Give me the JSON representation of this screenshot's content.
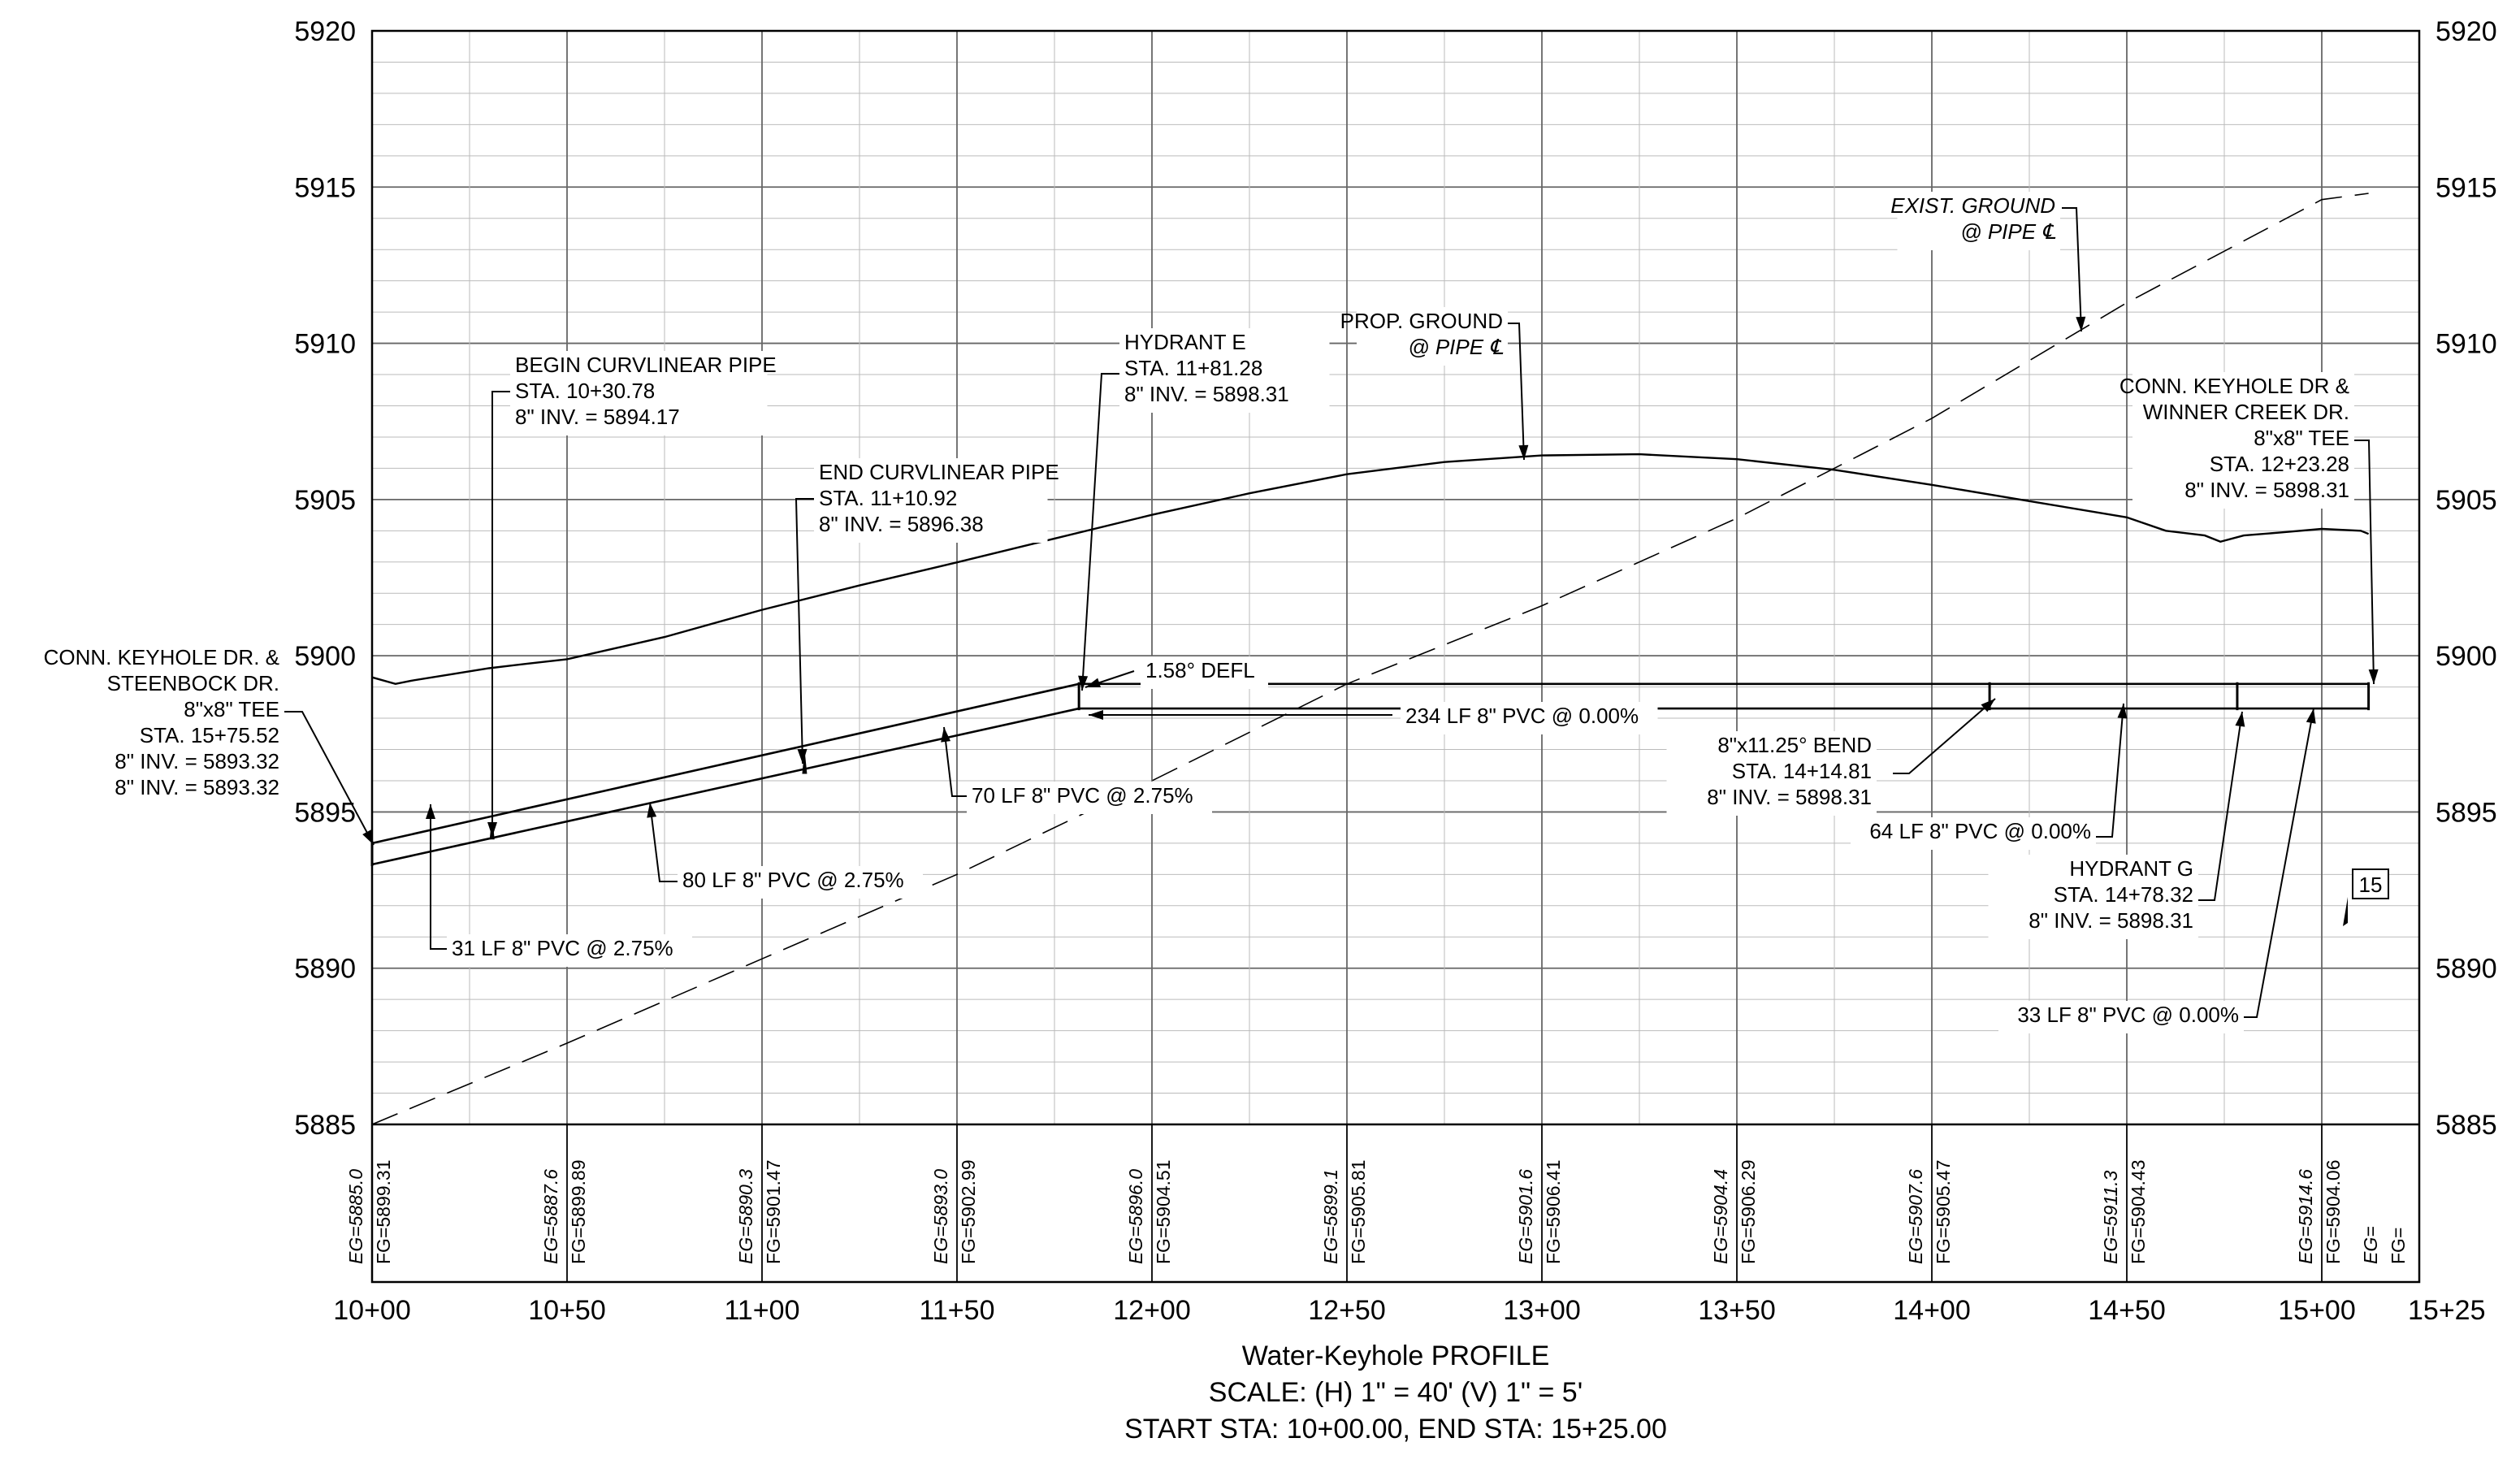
{
  "profile": {
    "title": "Water-Keyhole PROFILE",
    "scale": "SCALE: (H) 1\" = 40' (V) 1\" = 5'",
    "range": "START STA: 10+00.00, END STA: 15+25.00"
  },
  "axes": {
    "elev_min": 5885,
    "elev_max": 5920,
    "elev_step": 5,
    "elev_labels": [
      "5920",
      "5915",
      "5910",
      "5905",
      "5900",
      "5895",
      "5890",
      "5885"
    ],
    "sta_min": 1000,
    "sta_max": 1525,
    "sta_ticks": [
      {
        "sta": 1000,
        "label": "10+00"
      },
      {
        "sta": 1050,
        "label": "10+50"
      },
      {
        "sta": 1100,
        "label": "11+00"
      },
      {
        "sta": 1150,
        "label": "11+50"
      },
      {
        "sta": 1200,
        "label": "12+00"
      },
      {
        "sta": 1250,
        "label": "12+50"
      },
      {
        "sta": 1300,
        "label": "13+00"
      },
      {
        "sta": 1350,
        "label": "13+50"
      },
      {
        "sta": 1400,
        "label": "14+00"
      },
      {
        "sta": 1450,
        "label": "14+50"
      },
      {
        "sta": 1500,
        "label": "15+00"
      },
      {
        "sta": 1525,
        "label": "15+25"
      }
    ]
  },
  "elevations": [
    {
      "sta": 1000,
      "eg": "EG=5885.0",
      "fg": "FG=5899.31"
    },
    {
      "sta": 1050,
      "eg": "EG=5887.6",
      "fg": "FG=5899.89"
    },
    {
      "sta": 1100,
      "eg": "EG=5890.3",
      "fg": "FG=5901.47"
    },
    {
      "sta": 1150,
      "eg": "EG=5893.0",
      "fg": "FG=5902.99"
    },
    {
      "sta": 1200,
      "eg": "EG=5896.0",
      "fg": "FG=5904.51"
    },
    {
      "sta": 1250,
      "eg": "EG=5899.1",
      "fg": "FG=5905.81"
    },
    {
      "sta": 1300,
      "eg": "EG=5901.6",
      "fg": "FG=5906.41"
    },
    {
      "sta": 1350,
      "eg": "EG=5904.4",
      "fg": "FG=5906.29"
    },
    {
      "sta": 1400,
      "eg": "EG=5907.6",
      "fg": "FG=5905.47"
    },
    {
      "sta": 1450,
      "eg": "EG=5911.3",
      "fg": "FG=5904.43"
    },
    {
      "sta": 1500,
      "eg": "EG=5914.6",
      "fg": "FG=5904.06"
    },
    {
      "sta": 1525,
      "eg": "EG=",
      "fg": "FG="
    }
  ],
  "prop_ground": [
    [
      1000,
      5899.31
    ],
    [
      1006,
      5899.1
    ],
    [
      1010,
      5899.2
    ],
    [
      1020,
      5899.4
    ],
    [
      1030,
      5899.6
    ],
    [
      1040,
      5899.75
    ],
    [
      1050,
      5899.89
    ],
    [
      1075,
      5900.6
    ],
    [
      1100,
      5901.47
    ],
    [
      1125,
      5902.25
    ],
    [
      1150,
      5902.99
    ],
    [
      1175,
      5903.75
    ],
    [
      1200,
      5904.51
    ],
    [
      1225,
      5905.2
    ],
    [
      1250,
      5905.81
    ],
    [
      1275,
      5906.2
    ],
    [
      1300,
      5906.41
    ],
    [
      1325,
      5906.45
    ],
    [
      1350,
      5906.29
    ],
    [
      1375,
      5905.95
    ],
    [
      1400,
      5905.47
    ],
    [
      1425,
      5904.95
    ],
    [
      1450,
      5904.43
    ],
    [
      1460,
      5904.0
    ],
    [
      1470,
      5903.85
    ],
    [
      1474,
      5903.65
    ],
    [
      1480,
      5903.85
    ],
    [
      1490,
      5903.95
    ],
    [
      1500,
      5904.06
    ],
    [
      1510,
      5904.0
    ],
    [
      1512,
      5903.9
    ]
  ],
  "exist_ground": [
    [
      1000,
      5885.0
    ],
    [
      1050,
      5887.6
    ],
    [
      1100,
      5890.3
    ],
    [
      1150,
      5893.0
    ],
    [
      1200,
      5896.0
    ],
    [
      1250,
      5899.1
    ],
    [
      1300,
      5901.6
    ],
    [
      1350,
      5904.4
    ],
    [
      1400,
      5907.6
    ],
    [
      1450,
      5911.3
    ],
    [
      1500,
      5914.6
    ],
    [
      1512,
      5914.8
    ]
  ],
  "pipe_top": [
    [
      1000,
      5894.0
    ],
    [
      1181.28,
      5899.1
    ],
    [
      1512,
      5899.1
    ]
  ],
  "pipe_bottom": [
    [
      1000,
      5893.32
    ],
    [
      1181.28,
      5898.31
    ],
    [
      1512,
      5898.31
    ]
  ],
  "callouts": [
    {
      "id": "begin-curvilinear-pipe",
      "lines": [
        "BEGIN CURVLINEAR PIPE",
        "STA. 10+30.78",
        "8\" INV. = 5894.17"
      ]
    },
    {
      "id": "end-curvilinear-pipe",
      "lines": [
        "END CURVLINEAR PIPE",
        "STA. 11+10.92",
        "8\" INV. = 5896.38"
      ]
    },
    {
      "id": "hydrant-e",
      "lines": [
        "HYDRANT E",
        "STA. 11+81.28",
        "8\" INV. = 5898.31"
      ]
    },
    {
      "id": "prop-ground",
      "lines": [
        "PROP. GROUND",
        "@ PIPE ℄"
      ]
    },
    {
      "id": "exist-ground",
      "lines": [
        "EXIST. GROUND",
        "@ PIPE ℄"
      ]
    },
    {
      "id": "conn-keyhole-winner",
      "lines": [
        "CONN. KEYHOLE DR &",
        "WINNER CREEK DR.",
        "8\"x8\" TEE",
        "STA. 12+23.28",
        "8\" INV. = 5898.31"
      ]
    },
    {
      "id": "conn-keyhole-steenbock",
      "lines": [
        "CONN. KEYHOLE DR. &",
        "STEENBOCK DR.",
        "8\"x8\" TEE",
        "STA. 15+75.52",
        "8\" INV. = 5893.32",
        "8\" INV. = 5893.32"
      ]
    },
    {
      "id": "defl",
      "lines": [
        "1.58° DEFL"
      ]
    },
    {
      "id": "pipe-234",
      "lines": [
        "234 LF 8\" PVC @ 0.00%"
      ]
    },
    {
      "id": "pipe-70",
      "lines": [
        "70 LF 8\" PVC @ 2.75%"
      ]
    },
    {
      "id": "pipe-80",
      "lines": [
        "80 LF 8\" PVC @ 2.75%"
      ]
    },
    {
      "id": "pipe-31",
      "lines": [
        "31 LF 8\" PVC @ 2.75%"
      ]
    },
    {
      "id": "bend",
      "lines": [
        "8\"x11.25° BEND",
        "STA. 14+14.81",
        "8\" INV. = 5898.31"
      ]
    },
    {
      "id": "pipe-64",
      "lines": [
        "64 LF 8\" PVC @ 0.00%"
      ]
    },
    {
      "id": "hydrant-g",
      "lines": [
        "HYDRANT G",
        "STA. 14+78.32",
        "8\" INV. = 5898.31"
      ]
    },
    {
      "id": "pipe-33",
      "lines": [
        "33 LF 8\" PVC @ 0.00%"
      ]
    },
    {
      "id": "sheet-tag",
      "lines": [
        "15"
      ]
    }
  ]
}
